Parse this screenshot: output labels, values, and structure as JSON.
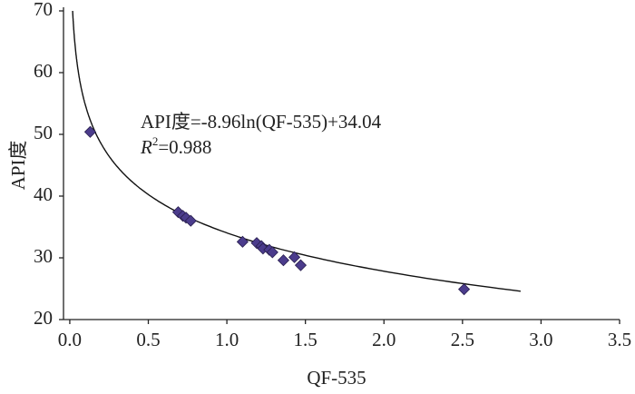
{
  "chart_data": {
    "type": "scatter",
    "x_label": "QF-535",
    "y_label": "API度",
    "x": [
      0.13,
      0.69,
      0.72,
      0.74,
      0.77,
      1.1,
      1.19,
      1.22,
      1.23,
      1.27,
      1.29,
      1.36,
      1.43,
      1.47,
      2.51
    ],
    "values": [
      50.4,
      37.4,
      36.8,
      36.5,
      36.0,
      32.6,
      32.4,
      31.9,
      31.5,
      31.3,
      30.9,
      29.6,
      30.1,
      28.8,
      24.9
    ],
    "color": "#4b3c8c",
    "xlim": [
      -0.04,
      3.5
    ],
    "xticks": [
      {
        "value": 0,
        "label": "0.0"
      },
      0.5,
      {
        "value": 1,
        "label": "1.0"
      },
      1.5,
      {
        "value": 2,
        "label": "2.0"
      },
      2.5,
      {
        "value": 3,
        "label": "3.0"
      },
      3.5
    ],
    "ylim": [
      20,
      70
    ],
    "yticks": [
      20,
      30,
      40,
      50,
      60,
      70
    ],
    "trendline": {
      "equation": "API度=-8.96ln(QF-535)+34.04",
      "r2_symbol": "R",
      "r2_exponent": "2",
      "r2_value": "=0.988",
      "a": -8.96,
      "b": 34.04,
      "x_end": 2.87
    }
  }
}
